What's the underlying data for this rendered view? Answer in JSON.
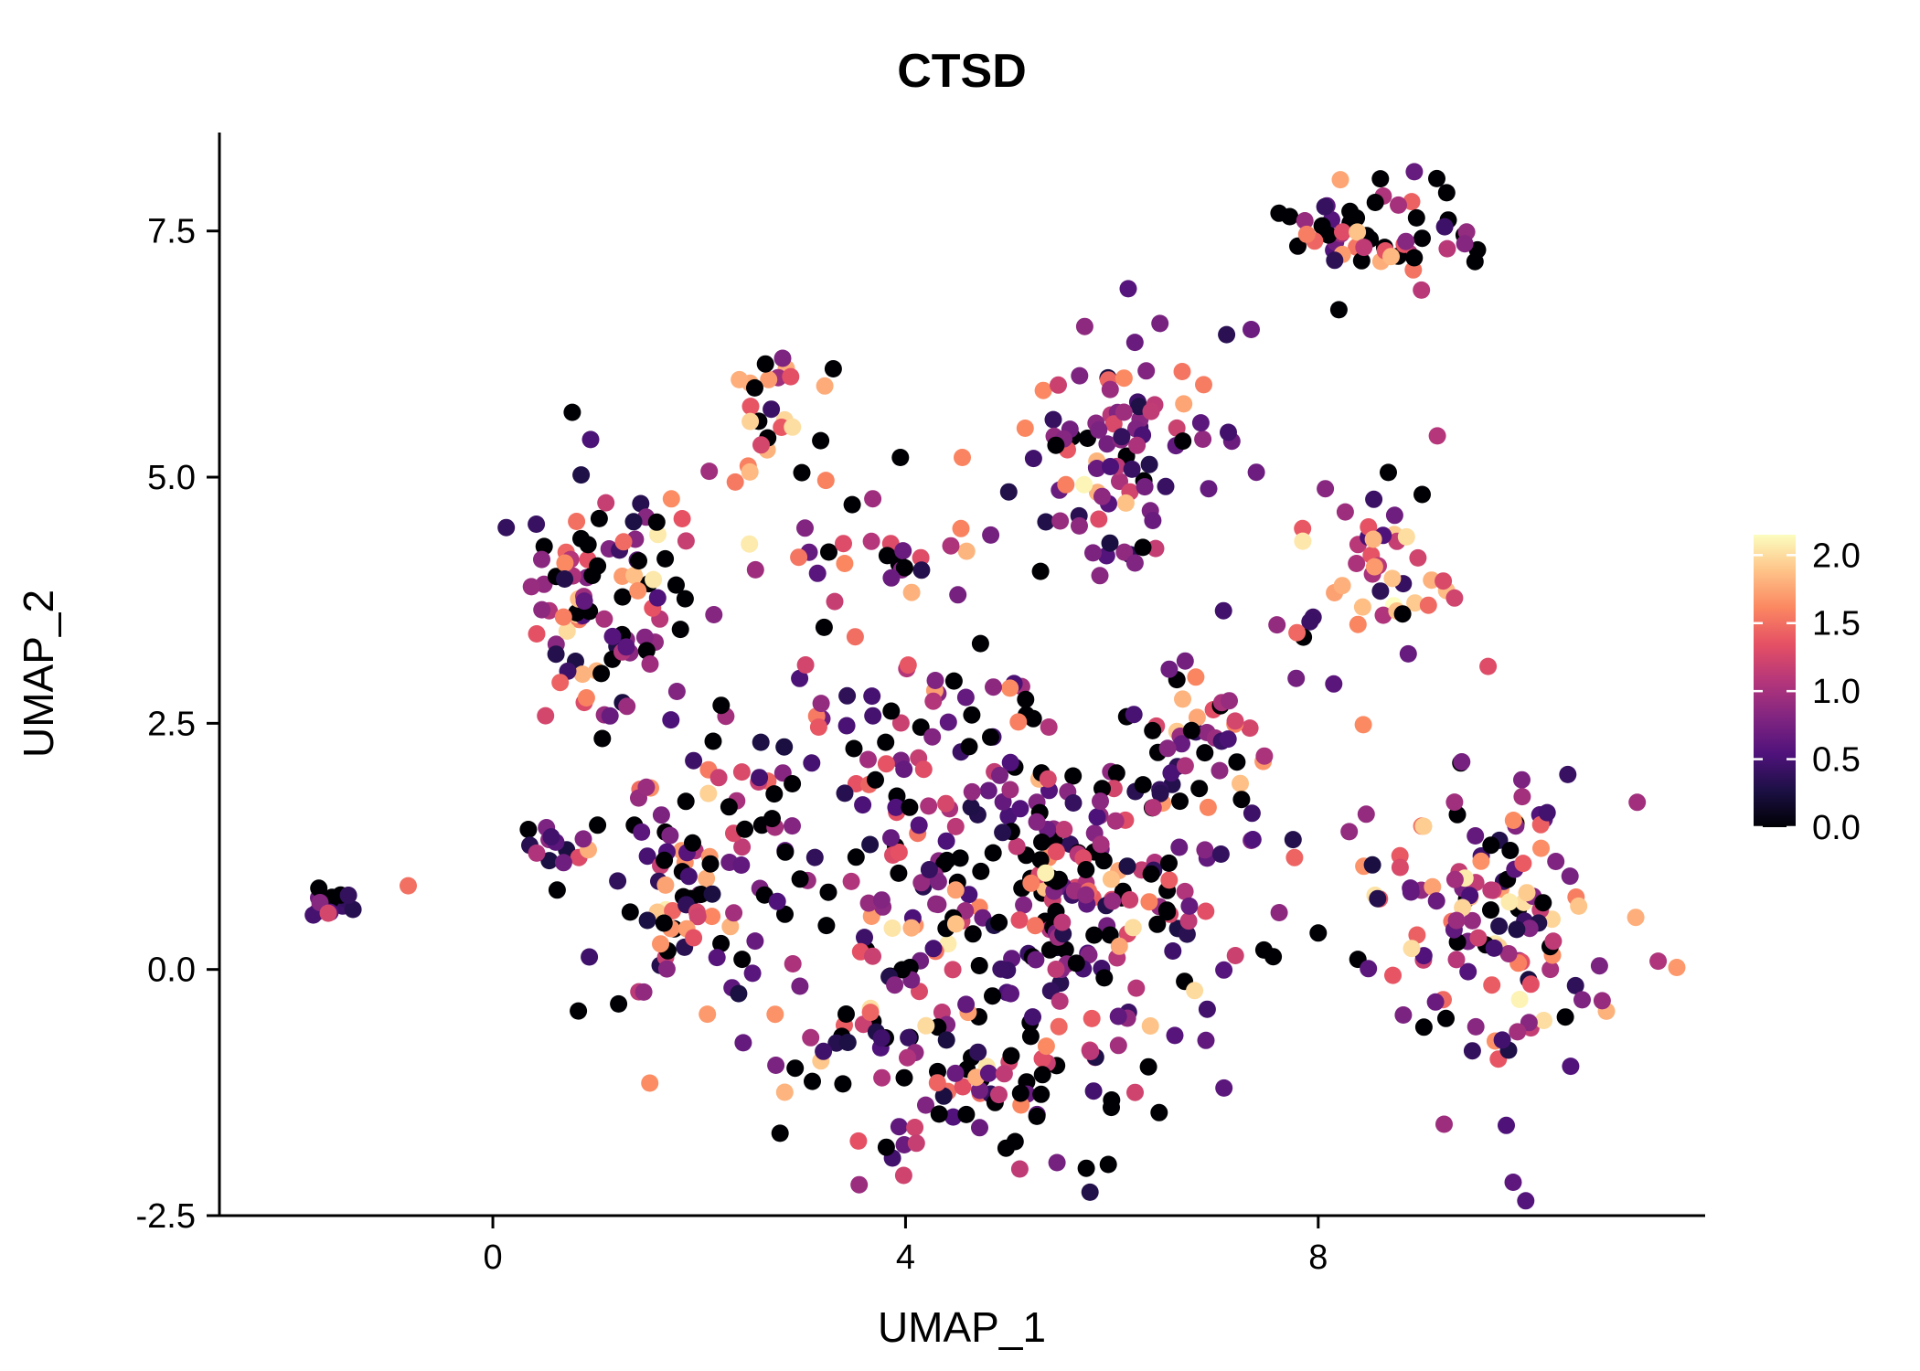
{
  "title": "CTSD",
  "seed": 1337,
  "point_radius": 9.5,
  "panel": {
    "background": "#ffffff",
    "axis_color": "#000000"
  },
  "colormap": [
    "#000004",
    "#1c1044",
    "#4f127b",
    "#812581",
    "#b5367a",
    "#e55064",
    "#fb8761",
    "#fec287",
    "#fcfdbf"
  ],
  "colorbar": {
    "domain": [
      0,
      2.15
    ],
    "tick_values": [
      0.0,
      0.5,
      1.0,
      1.5,
      2.0
    ],
    "tick_labels": [
      "0.0",
      "0.5",
      "1.0",
      "1.5",
      "2.0"
    ],
    "position": "right"
  },
  "chart_data": {
    "type": "scatter",
    "title": "CTSD",
    "xlabel": "UMAP_1",
    "ylabel": "UMAP_2",
    "xlim": [
      -2.65,
      11.75
    ],
    "ylim": [
      -2.5,
      8.5
    ],
    "grid": false,
    "legend_position": "right",
    "x_ticks": {
      "values": [
        0,
        4,
        8
      ],
      "labels": [
        "0",
        "4",
        "8"
      ]
    },
    "y_ticks": {
      "values": [
        -2.5,
        0.0,
        2.5,
        5.0,
        7.5
      ],
      "labels": [
        "-2.5",
        "0.0",
        "2.5",
        "5.0",
        "7.5"
      ]
    },
    "color_scale": {
      "name": "magma",
      "domain": [
        0,
        2.15
      ],
      "tick_values": [
        0.0,
        0.5,
        1.0,
        1.5,
        2.0
      ]
    },
    "value_bands": {
      "zero": [
        0,
        0
      ],
      "low": [
        0.25,
        0.75
      ],
      "mid": [
        0.75,
        1.35
      ],
      "high": [
        1.35,
        1.9
      ],
      "top": [
        1.9,
        2.15
      ]
    },
    "clusters": [
      {
        "name": "far-left",
        "cx": -1.55,
        "cy": 0.68,
        "sx": 0.14,
        "sy": 0.09,
        "n": 14,
        "mix": {
          "zero": 0.2,
          "low": 0.4,
          "mid": 0.35,
          "high": 0.05,
          "top": 0
        }
      },
      {
        "name": "left-mid-small",
        "cx": 0.75,
        "cy": 1.35,
        "sx": 0.22,
        "sy": 0.13,
        "n": 12,
        "mix": {
          "zero": 0.3,
          "low": 0.3,
          "mid": 0.3,
          "high": 0.1,
          "top": 0
        }
      },
      {
        "name": "top-mid",
        "cx": 2.75,
        "cy": 5.75,
        "sx": 0.28,
        "sy": 0.3,
        "n": 26,
        "mix": {
          "zero": 0.25,
          "low": 0.08,
          "mid": 0.17,
          "high": 0.33,
          "top": 0.17
        }
      },
      {
        "name": "upper-mid",
        "cx": 6.05,
        "cy": 5.25,
        "sx": 0.48,
        "sy": 0.52,
        "n": 88,
        "mix": {
          "zero": 0.14,
          "low": 0.42,
          "mid": 0.32,
          "high": 0.1,
          "top": 0.02
        }
      },
      {
        "name": "top-right",
        "cx": 8.55,
        "cy": 7.5,
        "sx": 0.5,
        "sy": 0.22,
        "n": 55,
        "mix": {
          "zero": 0.32,
          "low": 0.14,
          "mid": 0.24,
          "high": 0.24,
          "top": 0.06
        }
      },
      {
        "name": "right-mid",
        "cx": 8.55,
        "cy": 4.2,
        "sx": 0.33,
        "sy": 0.42,
        "n": 42,
        "mix": {
          "zero": 0.12,
          "low": 0.18,
          "mid": 0.3,
          "high": 0.3,
          "top": 0.1
        }
      },
      {
        "name": "left-upper",
        "cx": 1.05,
        "cy": 3.7,
        "sx": 0.42,
        "sy": 0.6,
        "n": 95,
        "mix": {
          "zero": 0.22,
          "low": 0.25,
          "mid": 0.33,
          "high": 0.17,
          "top": 0.03
        }
      },
      {
        "name": "mid-band",
        "cx": 3.6,
        "cy": 4.3,
        "sx": 0.85,
        "sy": 0.28,
        "n": 30,
        "mix": {
          "zero": 0.25,
          "low": 0.2,
          "mid": 0.3,
          "high": 0.22,
          "top": 0.03
        }
      },
      {
        "name": "center-left",
        "cx": 1.9,
        "cy": 0.9,
        "sx": 0.5,
        "sy": 0.75,
        "n": 100,
        "mix": {
          "zero": 0.28,
          "low": 0.3,
          "mid": 0.28,
          "high": 0.13,
          "top": 0.01
        }
      },
      {
        "name": "center-upper",
        "cx": 3.8,
        "cy": 2.4,
        "sx": 0.8,
        "sy": 0.5,
        "n": 55,
        "mix": {
          "zero": 0.28,
          "low": 0.28,
          "mid": 0.28,
          "high": 0.14,
          "top": 0.02
        }
      },
      {
        "name": "center-core",
        "cx": 4.5,
        "cy": 0.45,
        "sx": 1.0,
        "sy": 1.0,
        "n": 170,
        "mix": {
          "zero": 0.28,
          "low": 0.3,
          "mid": 0.28,
          "high": 0.13,
          "top": 0.01
        }
      },
      {
        "name": "center-right",
        "cx": 6.0,
        "cy": 1.0,
        "sx": 0.75,
        "sy": 0.9,
        "n": 130,
        "mix": {
          "zero": 0.27,
          "low": 0.3,
          "mid": 0.28,
          "high": 0.13,
          "top": 0.02
        }
      },
      {
        "name": "center-right-arm",
        "cx": 6.9,
        "cy": 2.3,
        "sx": 0.4,
        "sy": 0.55,
        "n": 45,
        "mix": {
          "zero": 0.25,
          "low": 0.3,
          "mid": 0.28,
          "high": 0.15,
          "top": 0.02
        }
      },
      {
        "name": "bottom-arc",
        "cx": 4.7,
        "cy": -1.2,
        "sx": 0.9,
        "sy": 0.42,
        "n": 70,
        "mix": {
          "zero": 0.34,
          "low": 0.3,
          "mid": 0.25,
          "high": 0.1,
          "top": 0.01
        }
      },
      {
        "name": "right-lower",
        "cx": 9.7,
        "cy": 0.55,
        "sx": 0.55,
        "sy": 0.8,
        "n": 135,
        "mix": {
          "zero": 0.15,
          "low": 0.22,
          "mid": 0.35,
          "high": 0.22,
          "top": 0.06
        }
      }
    ],
    "outliers": [
      {
        "x": -0.82,
        "y": 0.85,
        "v": 1.5
      },
      {
        "x": 7.35,
        "y": 6.5,
        "v": 0.7
      },
      {
        "x": 9.0,
        "y": 6.9,
        "v": 1.1
      },
      {
        "x": 8.2,
        "y": 6.7,
        "v": 0.0
      },
      {
        "x": 4.55,
        "y": 5.2,
        "v": 1.6
      },
      {
        "x": 3.95,
        "y": 5.2,
        "v": 0.0
      },
      {
        "x": 7.4,
        "y": 5.05,
        "v": 0.7
      },
      {
        "x": 7.85,
        "y": 4.35,
        "v": 2.05
      },
      {
        "x": 7.6,
        "y": 3.5,
        "v": 0.9
      },
      {
        "x": 2.35,
        "y": 4.95,
        "v": 1.55
      },
      {
        "x": 5.0,
        "y": 4.85,
        "v": 0.3
      },
      {
        "x": 8.15,
        "y": 2.9,
        "v": 0.6
      },
      {
        "x": 8.3,
        "y": 1.4,
        "v": 0.9
      },
      {
        "x": 3.3,
        "y": 6.1,
        "v": 0.0
      }
    ]
  }
}
